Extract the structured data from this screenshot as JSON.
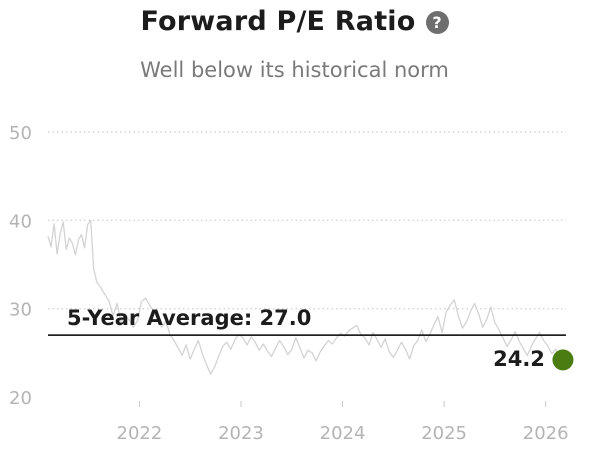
{
  "header": {
    "title": "Forward P/E Ratio",
    "subtitle": "Well below its historical norm",
    "help_icon": "question-circle-icon",
    "help_glyph": "?"
  },
  "chart_data": {
    "type": "line",
    "title": "Forward P/E Ratio",
    "subtitle": "Well below its historical norm",
    "xlabel": "",
    "ylabel": "",
    "xlim": [
      2021.1,
      2026.2
    ],
    "ylim": [
      20,
      50
    ],
    "y_ticks": [
      20,
      30,
      40,
      50
    ],
    "x_ticks": [
      2022,
      2023,
      2024,
      2025,
      2026
    ],
    "grid": "horizontal-dotted",
    "line_color": "#d3d3d3",
    "series": [
      {
        "x": [
          2021.1,
          2021.13,
          2021.16,
          2021.19,
          2021.22,
          2021.25,
          2021.28,
          2021.31,
          2021.34,
          2021.37,
          2021.4,
          2021.43,
          2021.46,
          2021.49,
          2021.52,
          2021.55,
          2021.58,
          2021.62,
          2021.66,
          2021.7,
          2021.74,
          2021.78,
          2021.82,
          2021.86,
          2021.9,
          2021.94,
          2021.98,
          2022.02,
          2022.06,
          2022.1,
          2022.14,
          2022.18,
          2022.22,
          2022.26,
          2022.3,
          2022.34,
          2022.38,
          2022.42,
          2022.46,
          2022.5,
          2022.54,
          2022.58,
          2022.62,
          2022.66,
          2022.7,
          2022.74,
          2022.78,
          2022.82,
          2022.86,
          2022.9,
          2022.94,
          2022.98,
          2023.02,
          2023.06,
          2023.1,
          2023.14,
          2023.18,
          2023.22,
          2023.26,
          2023.3,
          2023.34,
          2023.38,
          2023.42,
          2023.46,
          2023.5,
          2023.54,
          2023.58,
          2023.62,
          2023.66,
          2023.7,
          2023.74,
          2023.78,
          2023.82,
          2023.86,
          2023.9,
          2023.94,
          2023.98,
          2024.02,
          2024.06,
          2024.1,
          2024.14,
          2024.18,
          2024.22,
          2024.26,
          2024.3,
          2024.34,
          2024.38,
          2024.42,
          2024.46,
          2024.5,
          2024.54,
          2024.58,
          2024.62,
          2024.66,
          2024.7,
          2024.74,
          2024.78,
          2024.82,
          2024.86,
          2024.9,
          2024.94,
          2024.98,
          2025.02,
          2025.06,
          2025.1,
          2025.14,
          2025.18,
          2025.22,
          2025.26,
          2025.3,
          2025.34,
          2025.38,
          2025.42,
          2025.46,
          2025.5,
          2025.54,
          2025.58,
          2025.62,
          2025.66,
          2025.7,
          2025.74,
          2025.78,
          2025.82,
          2025.86,
          2025.9,
          2025.94,
          2025.98,
          2026.02,
          2026.06,
          2026.1,
          2026.14
        ],
        "values": [
          38.2,
          37.0,
          39.6,
          36.2,
          38.5,
          39.8,
          36.7,
          38.0,
          37.4,
          36.1,
          37.8,
          38.4,
          36.9,
          39.5,
          40.0,
          34.5,
          33.0,
          32.4,
          31.6,
          30.9,
          29.2,
          30.6,
          28.4,
          29.4,
          28.7,
          27.9,
          28.6,
          30.8,
          31.2,
          30.4,
          29.7,
          28.8,
          27.9,
          28.6,
          27.1,
          26.4,
          25.6,
          24.7,
          25.9,
          24.3,
          25.4,
          26.4,
          24.9,
          23.7,
          22.6,
          23.4,
          24.6,
          25.7,
          26.2,
          25.4,
          26.5,
          27.1,
          26.7,
          25.9,
          26.8,
          26.2,
          25.3,
          26.0,
          25.2,
          24.6,
          25.5,
          26.4,
          25.7,
          24.8,
          25.4,
          26.7,
          25.6,
          24.4,
          25.3,
          25.0,
          24.1,
          25.1,
          25.8,
          26.4,
          26.0,
          26.7,
          27.2,
          26.9,
          27.5,
          27.8,
          28.1,
          27.1,
          26.7,
          25.9,
          27.3,
          26.5,
          25.6,
          26.6,
          25.1,
          24.5,
          25.3,
          26.2,
          25.4,
          24.3,
          25.8,
          26.4,
          27.6,
          26.3,
          27.1,
          28.2,
          29.1,
          27.3,
          29.6,
          30.4,
          31.0,
          29.2,
          27.8,
          28.5,
          29.7,
          30.6,
          29.4,
          27.9,
          28.8,
          30.2,
          28.4,
          27.6,
          26.7,
          25.7,
          26.5,
          27.4,
          26.3,
          25.5,
          24.7,
          25.8,
          26.6,
          27.3,
          26.4,
          25.8,
          24.9,
          25.4,
          24.2
        ]
      }
    ],
    "average": {
      "label": "5-Year Average: 27.0",
      "value": 27.0,
      "color": "#000000"
    },
    "current": {
      "x": 2026.17,
      "value": 24.2,
      "label": "24.2",
      "color": "#4a7c12"
    }
  }
}
